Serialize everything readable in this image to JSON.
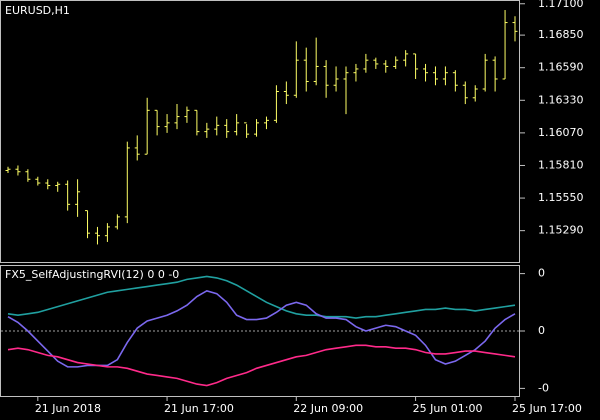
{
  "chart_data": [
    {
      "type": "ohlc",
      "title": "EURUSD,H1",
      "color": "#ffff66",
      "categories": [
        null,
        null,
        null,
        "21 Jun 2018",
        null,
        null,
        null,
        null,
        null,
        null,
        null,
        null,
        null,
        null,
        null,
        null,
        "21 Jun 17:00",
        null,
        null,
        null,
        null,
        null,
        null,
        null,
        null,
        null,
        null,
        null,
        null,
        "22 Jun 09:00",
        null,
        null,
        null,
        null,
        null,
        null,
        null,
        null,
        null,
        null,
        null,
        "25 Jun 01:00",
        null,
        null,
        null,
        null,
        null,
        null,
        null,
        null,
        null,
        "25 Jun 17:00"
      ],
      "open": [
        1.1577,
        1.1578,
        1.1576,
        1.157,
        1.1567,
        1.1565,
        1.1566,
        1.155,
        1.1545,
        1.1527,
        1.1525,
        1.1532,
        1.154,
        1.1595,
        1.159,
        1.1625,
        1.1612,
        1.1615,
        1.162,
        1.1625,
        1.1608,
        1.161,
        1.1613,
        1.1608,
        1.1615,
        1.1606,
        1.1615,
        1.1617,
        1.164,
        1.1637,
        1.1665,
        1.1648,
        1.166,
        1.1645,
        1.165,
        1.1655,
        1.1658,
        1.1665,
        1.1662,
        1.166,
        1.1665,
        1.167,
        1.1658,
        1.1655,
        1.165,
        1.1655,
        1.1645,
        1.1635,
        1.1642,
        1.1665,
        1.165,
        1.1695
      ],
      "high": [
        1.158,
        1.1581,
        1.1578,
        1.1572,
        1.157,
        1.1568,
        1.1569,
        1.157,
        1.1545,
        1.1532,
        1.1535,
        1.1542,
        1.16,
        1.1605,
        1.1635,
        1.1625,
        1.1622,
        1.163,
        1.1628,
        1.1625,
        1.1615,
        1.162,
        1.1618,
        1.1622,
        1.1614,
        1.1618,
        1.162,
        1.1645,
        1.1648,
        1.168,
        1.1675,
        1.1683,
        1.1665,
        1.166,
        1.166,
        1.1662,
        1.167,
        1.1667,
        1.1665,
        1.1668,
        1.1673,
        1.167,
        1.1662,
        1.166,
        1.166,
        1.1657,
        1.1648,
        1.1645,
        1.167,
        1.1668,
        1.1705,
        1.17
      ],
      "low": [
        1.1575,
        1.1573,
        1.1568,
        1.1565,
        1.1562,
        1.156,
        1.1545,
        1.154,
        1.1523,
        1.1518,
        1.152,
        1.153,
        1.1535,
        1.1585,
        1.159,
        1.1605,
        1.1607,
        1.161,
        1.1615,
        1.1605,
        1.1603,
        1.1605,
        1.1603,
        1.1605,
        1.1603,
        1.1604,
        1.161,
        1.1615,
        1.163,
        1.1635,
        1.164,
        1.1645,
        1.1635,
        1.164,
        1.1622,
        1.1648,
        1.1655,
        1.1658,
        1.1655,
        1.1658,
        1.166,
        1.165,
        1.1648,
        1.1645,
        1.1645,
        1.164,
        1.163,
        1.1632,
        1.164,
        1.164,
        1.165,
        1.168
      ],
      "close": [
        1.1578,
        1.1576,
        1.157,
        1.1567,
        1.1565,
        1.1566,
        1.155,
        1.156,
        1.1527,
        1.1525,
        1.1532,
        1.154,
        1.1595,
        1.159,
        1.1625,
        1.1612,
        1.1615,
        1.162,
        1.1625,
        1.1608,
        1.161,
        1.1613,
        1.1608,
        1.1615,
        1.1606,
        1.1615,
        1.1617,
        1.164,
        1.1637,
        1.1665,
        1.1648,
        1.166,
        1.1645,
        1.165,
        1.1655,
        1.1658,
        1.1665,
        1.1662,
        1.166,
        1.1665,
        1.167,
        1.1658,
        1.1655,
        1.165,
        1.1655,
        1.1645,
        1.1635,
        1.1642,
        1.1665,
        1.165,
        1.1695,
        1.1688
      ],
      "ylim": [
        1.1504,
        1.1713
      ],
      "yticks": [
        {
          "value": 1.171,
          "label": "1.17100"
        },
        {
          "value": 1.1685,
          "label": "1.16850"
        },
        {
          "value": 1.1659,
          "label": "1.16590"
        },
        {
          "value": 1.1633,
          "label": "1.16330"
        },
        {
          "value": 1.1607,
          "label": "1.16070"
        },
        {
          "value": 1.1581,
          "label": "1.15810"
        },
        {
          "value": 1.1555,
          "label": "1.15550"
        },
        {
          "value": 1.1529,
          "label": "1.15290"
        }
      ]
    },
    {
      "type": "line",
      "title": "FX5_SelfAdjustingRVI(12) 0 0 -0",
      "ylim": [
        -0.46,
        0.46
      ],
      "yticks": [
        {
          "value": 0.4,
          "label": "0"
        },
        {
          "value": 0,
          "label": "0"
        },
        {
          "value": -0.4,
          "label": "-0"
        }
      ],
      "level": 0,
      "series": [
        {
          "color": "#20a0a0",
          "values": [
            0.12,
            0.11,
            0.12,
            0.13,
            0.15,
            0.17,
            0.19,
            0.21,
            0.23,
            0.25,
            0.27,
            0.28,
            0.29,
            0.3,
            0.31,
            0.32,
            0.33,
            0.34,
            0.36,
            0.37,
            0.38,
            0.37,
            0.35,
            0.32,
            0.28,
            0.24,
            0.2,
            0.17,
            0.14,
            0.12,
            0.11,
            0.11,
            0.1,
            0.1,
            0.1,
            0.09,
            0.1,
            0.1,
            0.11,
            0.12,
            0.13,
            0.14,
            0.15,
            0.15,
            0.16,
            0.15,
            0.15,
            0.14,
            0.15,
            0.16,
            0.17,
            0.18
          ]
        },
        {
          "color": "#7b68ee",
          "values": [
            0.1,
            0.06,
            0.0,
            -0.07,
            -0.14,
            -0.21,
            -0.25,
            -0.25,
            -0.24,
            -0.24,
            -0.24,
            -0.2,
            -0.08,
            0.02,
            0.07,
            0.09,
            0.11,
            0.14,
            0.18,
            0.24,
            0.28,
            0.26,
            0.2,
            0.11,
            0.08,
            0.08,
            0.09,
            0.13,
            0.18,
            0.2,
            0.18,
            0.12,
            0.09,
            0.09,
            0.08,
            0.03,
            0.0,
            0.02,
            0.04,
            0.03,
            0.0,
            -0.03,
            -0.1,
            -0.2,
            -0.23,
            -0.21,
            -0.17,
            -0.13,
            -0.07,
            0.02,
            0.08,
            0.12
          ]
        },
        {
          "color": "#ff2a8a",
          "values": [
            -0.13,
            -0.12,
            -0.13,
            -0.15,
            -0.17,
            -0.18,
            -0.2,
            -0.22,
            -0.23,
            -0.24,
            -0.25,
            -0.25,
            -0.26,
            -0.28,
            -0.3,
            -0.31,
            -0.32,
            -0.33,
            -0.35,
            -0.37,
            -0.38,
            -0.36,
            -0.33,
            -0.31,
            -0.29,
            -0.26,
            -0.24,
            -0.22,
            -0.2,
            -0.18,
            -0.17,
            -0.15,
            -0.13,
            -0.12,
            -0.11,
            -0.1,
            -0.1,
            -0.11,
            -0.11,
            -0.12,
            -0.12,
            -0.13,
            -0.15,
            -0.16,
            -0.16,
            -0.15,
            -0.14,
            -0.14,
            -0.15,
            -0.16,
            -0.17,
            -0.18
          ]
        }
      ]
    }
  ]
}
